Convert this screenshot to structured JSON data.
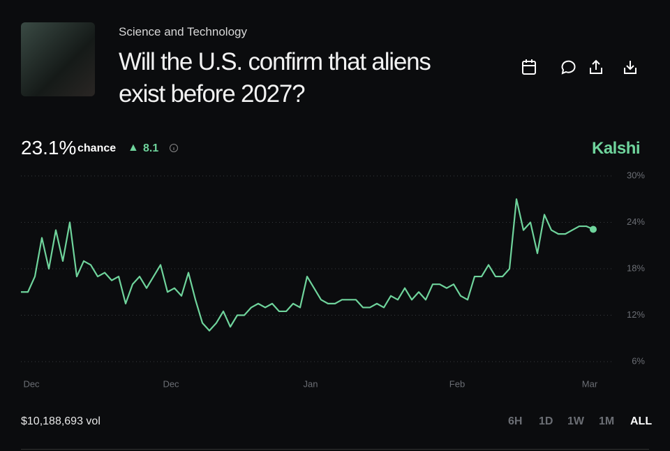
{
  "header": {
    "category": "Science and Technology",
    "title": "Will the U.S. confirm that aliens exist before 2027?"
  },
  "stats": {
    "chance": "23.1%",
    "chance_label": "chance",
    "delta": "8.1",
    "brand": "Kalshi",
    "volume": "$10,188,693 vol"
  },
  "ranges": [
    "6H",
    "1D",
    "1W",
    "1M",
    "ALL"
  ],
  "chart_data": {
    "type": "line",
    "categories": [
      null,
      "Dec",
      null,
      null,
      null,
      null,
      null,
      null,
      null,
      null,
      null,
      null,
      null,
      null,
      null,
      null,
      null,
      null,
      null,
      null,
      null,
      "Dec",
      null,
      null,
      null,
      null,
      null,
      null,
      null,
      null,
      null,
      null,
      null,
      null,
      null,
      null,
      null,
      null,
      null,
      null,
      null,
      "Jan",
      null,
      null,
      null,
      null,
      null,
      null,
      null,
      null,
      null,
      null,
      null,
      null,
      null,
      null,
      null,
      null,
      null,
      null,
      null,
      null,
      "Feb",
      null,
      null,
      null,
      null,
      null,
      null,
      null,
      null,
      null,
      null,
      null,
      null,
      null,
      null,
      null,
      null,
      null,
      null,
      "Mar",
      null
    ],
    "series": [
      {
        "color": "#6fd49c",
        "values": [
          15,
          15,
          17,
          22,
          18,
          23,
          19,
          24,
          17,
          19,
          18.5,
          17,
          17.5,
          16.5,
          17,
          13.5,
          16,
          17,
          15.5,
          17,
          18.5,
          15,
          15.5,
          14.5,
          17.5,
          14,
          11,
          10,
          11,
          12.5,
          10.5,
          12,
          12,
          13,
          13.5,
          13,
          13.5,
          12.5,
          12.5,
          13.5,
          13,
          17,
          15.5,
          14,
          13.5,
          13.5,
          14,
          14,
          14,
          13,
          13,
          13.5,
          13,
          14.5,
          14,
          15.5,
          14,
          15,
          14,
          16,
          16,
          15.5,
          16,
          14.5,
          14,
          17,
          17,
          18.5,
          17,
          17,
          18,
          27,
          23,
          24,
          20,
          25,
          23,
          22.5,
          22.5,
          23,
          23.5,
          23.5,
          23.1
        ]
      }
    ],
    "ylim": [
      6,
      30
    ],
    "yticks": [
      {
        "value": 6,
        "label": "6%"
      },
      {
        "value": 12,
        "label": "12%"
      },
      {
        "value": 18,
        "label": "18%"
      },
      {
        "value": 24,
        "label": "24%"
      },
      {
        "value": 30,
        "label": "30%"
      }
    ],
    "grid": true
  }
}
